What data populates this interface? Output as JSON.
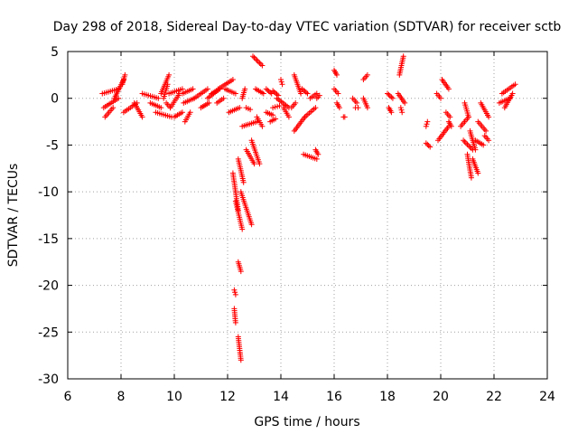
{
  "chart_data": {
    "type": "scatter",
    "title": "Day 298 of 2018, Sidereal Day-to-day VTEC variation (SDTVAR) for receiver sctb",
    "xlabel": "GPS time / hours",
    "ylabel": "SDTVAR / TECUs",
    "xlim": [
      6,
      24
    ],
    "ylim": [
      -30,
      5
    ],
    "xticks": [
      "6",
      "8",
      "10",
      "12",
      "14",
      "16",
      "18",
      "20",
      "22",
      "24"
    ],
    "yticks": [
      "5",
      "0",
      "-5",
      "-10",
      "-15",
      "-20",
      "-25",
      "-30"
    ],
    "grid": true,
    "marker": "+",
    "series_color": "#ff0000",
    "segments": [
      [
        7.3,
        0.5,
        7.9,
        1.0
      ],
      [
        7.35,
        -1.0,
        7.9,
        0.0
      ],
      [
        7.4,
        -2.0,
        7.7,
        -1.0
      ],
      [
        7.75,
        0.0,
        8.1,
        2.0
      ],
      [
        8.05,
        1.5,
        8.15,
        2.5
      ],
      [
        8.1,
        -1.5,
        8.6,
        -0.5
      ],
      [
        8.5,
        -0.5,
        8.8,
        -2.0
      ],
      [
        8.8,
        0.5,
        9.4,
        0.0
      ],
      [
        9.1,
        -0.5,
        9.5,
        -1.0
      ],
      [
        9.3,
        -1.5,
        9.9,
        -2.0
      ],
      [
        9.5,
        0.5,
        9.8,
        2.5
      ],
      [
        9.6,
        0.0,
        9.75,
        1.5
      ],
      [
        9.7,
        -0.5,
        9.85,
        -1.0
      ],
      [
        9.8,
        0.5,
        10.3,
        1.0
      ],
      [
        9.85,
        -1.0,
        10.2,
        0.5
      ],
      [
        10.0,
        -2.0,
        10.3,
        -1.5
      ],
      [
        10.3,
        0.5,
        10.7,
        1.0
      ],
      [
        10.35,
        -0.5,
        10.75,
        0.0
      ],
      [
        10.4,
        -2.5,
        10.6,
        -1.5
      ],
      [
        10.75,
        0.0,
        11.25,
        1.0
      ],
      [
        11.0,
        -1.0,
        11.3,
        -0.5
      ],
      [
        11.25,
        0.0,
        11.7,
        1.0
      ],
      [
        11.4,
        0.5,
        11.7,
        1.0
      ],
      [
        11.65,
        1.0,
        12.2,
        2.0
      ],
      [
        11.6,
        -0.5,
        11.85,
        0.0
      ],
      [
        11.9,
        1.0,
        12.3,
        0.5
      ],
      [
        12.05,
        -1.5,
        12.45,
        -1.0
      ],
      [
        12.2,
        -8.0,
        12.4,
        -12.0
      ],
      [
        12.3,
        -11.0,
        12.55,
        -14.0
      ],
      [
        12.25,
        -20.5,
        12.3,
        -21.0
      ],
      [
        12.25,
        -22.5,
        12.3,
        -24.0
      ],
      [
        12.4,
        -25.5,
        12.5,
        -28.0
      ],
      [
        12.4,
        -17.5,
        12.5,
        -18.5
      ],
      [
        12.4,
        -6.5,
        12.6,
        -9.0
      ],
      [
        12.5,
        -10.0,
        12.9,
        -13.5
      ],
      [
        12.55,
        0.0,
        12.65,
        1.0
      ],
      [
        12.55,
        -3.0,
        13.1,
        -2.5
      ],
      [
        12.7,
        -5.5,
        13.0,
        -7.0
      ],
      [
        12.7,
        -1.0,
        12.85,
        -1.2
      ],
      [
        12.9,
        -4.5,
        13.2,
        -7.0
      ],
      [
        12.95,
        4.5,
        13.3,
        3.5
      ],
      [
        13.05,
        1.0,
        13.35,
        0.5
      ],
      [
        13.1,
        -2.0,
        13.3,
        -3.0
      ],
      [
        13.45,
        1.0,
        13.65,
        0.5
      ],
      [
        13.45,
        -1.5,
        13.7,
        -1.8
      ],
      [
        13.6,
        -2.5,
        13.8,
        -2.2
      ],
      [
        13.7,
        -1.0,
        13.95,
        -0.8
      ],
      [
        13.7,
        0.8,
        13.9,
        0.3
      ],
      [
        13.85,
        0.0,
        14.3,
        -1.0
      ],
      [
        14.0,
        2.0,
        14.05,
        1.5
      ],
      [
        14.1,
        -1.0,
        14.3,
        -2.0
      ],
      [
        14.4,
        -1.0,
        14.55,
        -0.5
      ],
      [
        14.5,
        2.5,
        14.75,
        0.5
      ],
      [
        14.5,
        -3.5,
        14.9,
        -2.0
      ],
      [
        14.8,
        1.0,
        15.0,
        0.5
      ],
      [
        14.9,
        -2.0,
        15.3,
        -1.0
      ],
      [
        14.85,
        -6.0,
        15.35,
        -6.5
      ],
      [
        15.3,
        -5.5,
        15.4,
        -6.0
      ],
      [
        15.1,
        0.0,
        15.35,
        0.5
      ],
      [
        15.35,
        0.0,
        15.45,
        0.3
      ],
      [
        16.0,
        3.0,
        16.1,
        2.5
      ],
      [
        16.0,
        1.0,
        16.15,
        0.5
      ],
      [
        16.1,
        -0.5,
        16.2,
        -1.0
      ],
      [
        16.35,
        -2.0,
        16.4,
        -2.0
      ],
      [
        16.7,
        0.0,
        16.85,
        -0.5
      ],
      [
        16.8,
        -1.0,
        16.9,
        -1.0
      ],
      [
        17.1,
        2.0,
        17.25,
        2.5
      ],
      [
        17.1,
        0.0,
        17.25,
        -1.0
      ],
      [
        18.0,
        0.5,
        18.2,
        0.0
      ],
      [
        18.05,
        -1.0,
        18.15,
        -1.5
      ],
      [
        18.45,
        2.5,
        18.6,
        4.5
      ],
      [
        18.4,
        0.5,
        18.65,
        -0.5
      ],
      [
        18.5,
        -1.0,
        18.55,
        -1.5
      ],
      [
        19.45,
        -3.0,
        19.5,
        -2.5
      ],
      [
        19.45,
        -4.8,
        19.6,
        -5.2
      ],
      [
        19.85,
        0.5,
        20.0,
        0.0
      ],
      [
        19.9,
        -4.5,
        20.3,
        -3.0
      ],
      [
        20.05,
        2.0,
        20.3,
        1.0
      ],
      [
        20.2,
        -1.5,
        20.35,
        -2.0
      ],
      [
        20.3,
        -2.5,
        20.4,
        -3.0
      ],
      [
        20.75,
        -3.0,
        21.05,
        -2.0
      ],
      [
        20.85,
        -4.5,
        21.2,
        -5.5
      ],
      [
        20.9,
        -0.5,
        21.05,
        -2.0
      ],
      [
        21.0,
        -6.0,
        21.15,
        -8.5
      ],
      [
        21.1,
        -3.5,
        21.3,
        -5.5
      ],
      [
        21.2,
        -6.5,
        21.4,
        -8.0
      ],
      [
        21.3,
        -4.5,
        21.6,
        -5.0
      ],
      [
        21.4,
        -2.5,
        21.7,
        -3.5
      ],
      [
        21.5,
        -0.5,
        21.8,
        -2.0
      ],
      [
        21.65,
        -4.0,
        21.8,
        -4.5
      ],
      [
        22.2,
        -0.5,
        22.6,
        0.0
      ],
      [
        22.3,
        0.5,
        22.8,
        1.5
      ],
      [
        22.4,
        -1.0,
        22.7,
        0.5
      ]
    ]
  }
}
